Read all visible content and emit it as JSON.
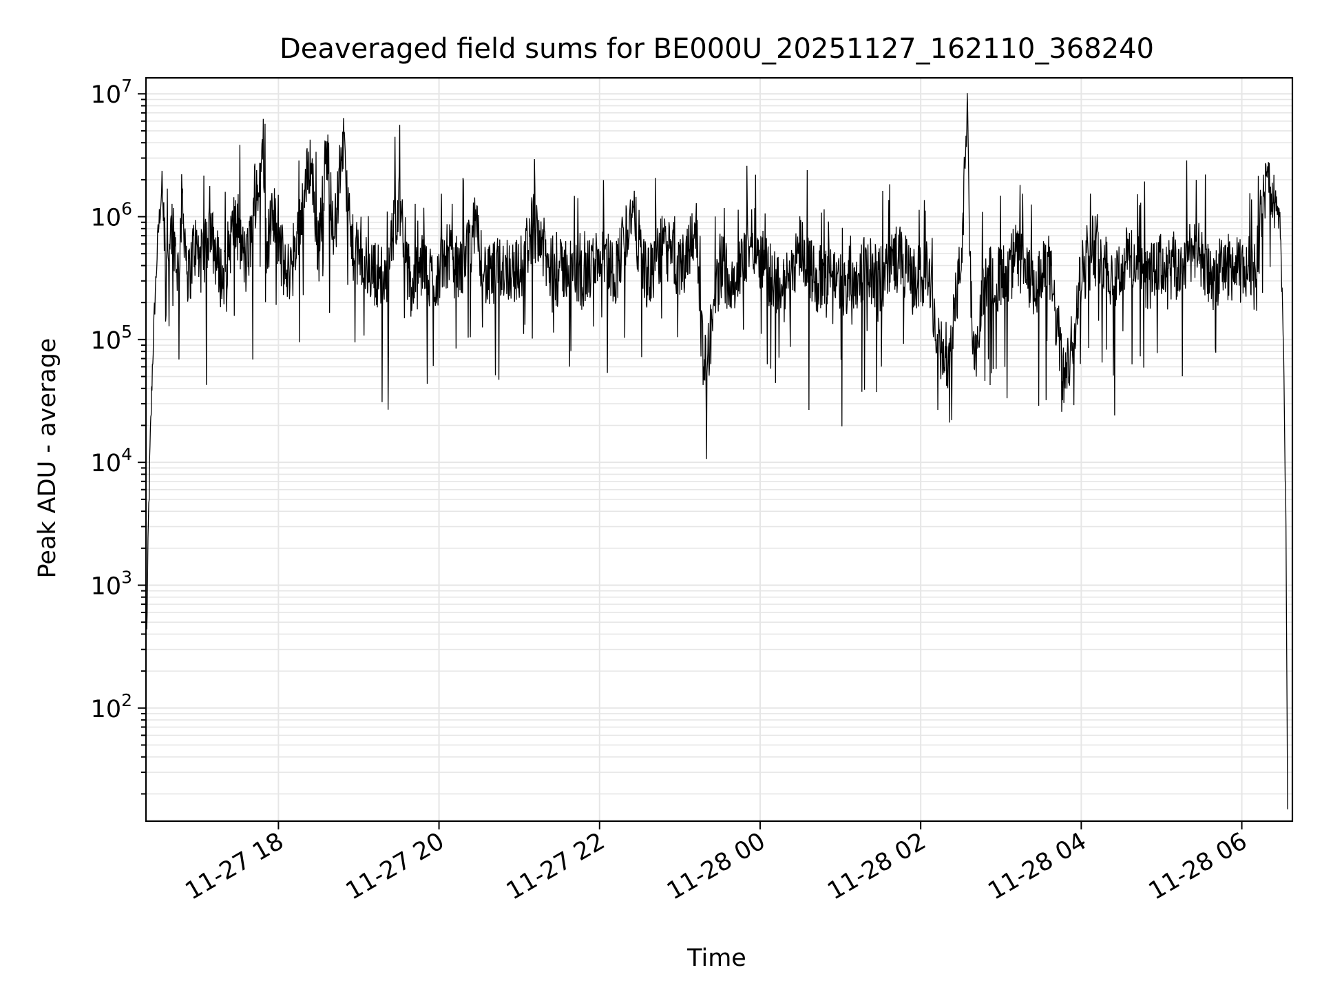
{
  "chart_data": {
    "type": "line",
    "title": "Deaveraged field sums for BE000U_20251127_162110_368240",
    "xlabel": "Time",
    "ylabel": "Peak ADU - average",
    "yscale": "log",
    "grid": true,
    "x_tick_labels": [
      "11-27 18",
      "11-27 20",
      "11-27 22",
      "11-28 00",
      "11-28 02",
      "11-28 04",
      "11-28 06"
    ],
    "x_tick_hours": [
      18,
      20,
      22,
      24,
      26,
      28,
      30
    ],
    "y_tick_exponents": [
      2,
      3,
      4,
      5,
      6,
      7
    ],
    "y_tick_base": "10",
    "xlim_hours": [
      16.35,
      30.63
    ],
    "ylim": [
      12,
      13500000
    ],
    "series": [
      {
        "color": "#000000",
        "x_hours": [
          16.36,
          16.38,
          16.4,
          16.43,
          16.46,
          16.5,
          16.55,
          16.6,
          16.68,
          16.75,
          16.8,
          16.88,
          16.95,
          17.05,
          17.15,
          17.3,
          17.45,
          17.6,
          17.75,
          17.8,
          17.85,
          17.95,
          18.1,
          18.25,
          18.4,
          18.5,
          18.6,
          18.7,
          18.8,
          18.9,
          19.05,
          19.2,
          19.35,
          19.5,
          19.65,
          19.8,
          19.95,
          20.1,
          20.25,
          20.45,
          20.6,
          20.8,
          21.0,
          21.2,
          21.4,
          21.6,
          21.8,
          22.0,
          22.2,
          22.4,
          22.6,
          22.8,
          23.0,
          23.2,
          23.3,
          23.5,
          23.7,
          23.9,
          24.1,
          24.3,
          24.5,
          24.7,
          24.9,
          25.1,
          25.3,
          25.5,
          25.7,
          25.9,
          26.1,
          26.3,
          26.5,
          26.58,
          26.62,
          26.66,
          26.8,
          27.0,
          27.2,
          27.4,
          27.6,
          27.8,
          28.0,
          28.2,
          28.4,
          28.6,
          28.8,
          29.0,
          29.2,
          29.4,
          29.6,
          29.8,
          30.0,
          30.1,
          30.2,
          30.3,
          30.4,
          30.48,
          30.52,
          30.55,
          30.57
        ],
        "y": [
          400,
          3000,
          12000,
          60000,
          200000,
          700000,
          1800000,
          500000,
          900000,
          350000,
          1400000,
          300000,
          600000,
          400000,
          750000,
          300000,
          900000,
          400000,
          1600000,
          7000000,
          600000,
          1000000,
          300000,
          800000,
          3000000,
          500000,
          3600000,
          700000,
          4200000,
          600000,
          400000,
          350000,
          300000,
          1500000,
          250000,
          400000,
          300000,
          500000,
          350000,
          800000,
          300000,
          400000,
          350000,
          1000000,
          300000,
          400000,
          300000,
          500000,
          350000,
          1100000,
          300000,
          600000,
          350000,
          900000,
          45000,
          400000,
          300000,
          700000,
          350000,
          250000,
          600000,
          300000,
          350000,
          250000,
          400000,
          300000,
          500000,
          300000,
          350000,
          50000,
          400000,
          6000000,
          300000,
          45000,
          350000,
          300000,
          500000,
          250000,
          400000,
          40000,
          350000,
          600000,
          300000,
          500000,
          300000,
          400000,
          350000,
          600000,
          300000,
          400000,
          350000,
          400000,
          500000,
          1800000,
          1500000,
          800000,
          80000,
          3000,
          15
        ]
      }
    ]
  }
}
